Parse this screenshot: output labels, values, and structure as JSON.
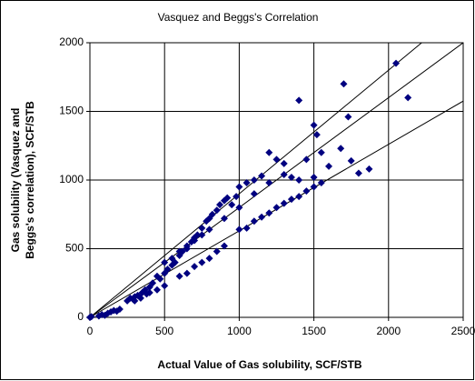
{
  "chart_data": {
    "type": "scatter",
    "title": "Vasquez and Beggs's Correlation",
    "xlabel": "Actual Value of Gas solubility, SCF/STB",
    "ylabel": [
      "Gas solubility (Vasquez and",
      "Beggs's correlation), SCF/STB"
    ],
    "xlim": [
      0,
      2500
    ],
    "xticks": [
      0,
      500,
      1000,
      1500,
      2000,
      2500
    ],
    "ylim": [
      0,
      2000
    ],
    "yticks": [
      0,
      500,
      1000,
      1500,
      2000
    ],
    "grid": true,
    "series": [
      {
        "color": "#000080",
        "x": [
          0,
          10,
          60,
          80,
          100,
          120,
          140,
          160,
          180,
          200,
          250,
          270,
          290,
          300,
          320,
          340,
          350,
          370,
          380,
          400,
          420,
          450,
          470,
          500,
          520,
          550,
          570,
          600,
          620,
          650,
          680,
          700,
          720,
          750,
          780,
          800,
          820,
          850,
          870,
          900,
          920,
          950,
          980,
          1000,
          1050,
          1100,
          1150,
          1200,
          1250,
          1300,
          1400,
          1500,
          1520,
          1700,
          1730,
          1680,
          1750,
          1800,
          1870,
          2050,
          2130,
          300,
          400,
          450,
          500,
          600,
          650,
          700,
          750,
          800,
          850,
          900,
          1000,
          1050,
          1100,
          1150,
          1200,
          1250,
          1300,
          1350,
          1400,
          1450,
          1500,
          1550,
          1400,
          1500,
          1600,
          500,
          600,
          700,
          800,
          900,
          1000,
          1100,
          1200,
          1300,
          1450,
          1550,
          1350,
          650,
          750,
          550
        ],
        "values": [
          0,
          5,
          10,
          20,
          15,
          30,
          40,
          50,
          45,
          60,
          120,
          140,
          130,
          150,
          160,
          140,
          180,
          200,
          170,
          220,
          250,
          300,
          280,
          320,
          350,
          380,
          400,
          450,
          480,
          500,
          550,
          580,
          600,
          650,
          700,
          720,
          750,
          780,
          820,
          850,
          870,
          820,
          880,
          950,
          980,
          1000,
          1030,
          1200,
          1150,
          1120,
          1580,
          1400,
          1330,
          1700,
          1460,
          1230,
          1140,
          1050,
          1080,
          1850,
          1600,
          120,
          180,
          200,
          230,
          300,
          320,
          370,
          400,
          430,
          480,
          520,
          640,
          650,
          700,
          730,
          760,
          800,
          830,
          860,
          880,
          920,
          950,
          980,
          1000,
          1020,
          1100,
          400,
          480,
          560,
          640,
          720,
          800,
          900,
          980,
          1040,
          1150,
          1200,
          1020,
          520,
          600,
          430
        ]
      }
    ],
    "reference_lines": [
      {
        "x": [
          0,
          2222
        ],
        "y": [
          0,
          2000
        ]
      },
      {
        "x": [
          0,
          2500
        ],
        "y": [
          0,
          2000
        ]
      },
      {
        "x": [
          0,
          2500
        ],
        "y": [
          0,
          1575
        ]
      }
    ]
  }
}
